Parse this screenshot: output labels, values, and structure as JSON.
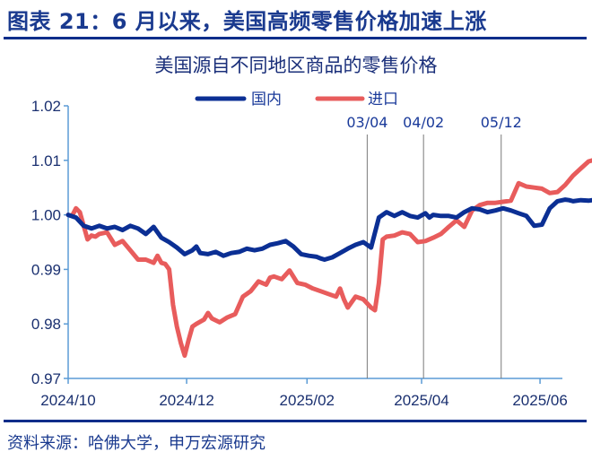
{
  "figure": {
    "title": "图表 21：6 月以来，美国高频零售价格加速上涨",
    "source": "资料来源：哈佛大学，申万宏源研究"
  },
  "colors": {
    "domestic": "#0b2f94",
    "import": "#e85c5c",
    "axis": "#5b9bd5",
    "rule": "#0b2d8a",
    "vline": "#7a7a7a"
  },
  "chart_data": {
    "type": "line",
    "title": "美国源自不同地区商品的零售价格",
    "xlabel": "",
    "ylabel": "",
    "ylim": [
      0.97,
      1.02
    ],
    "yticks": [
      "1.02",
      "1.01",
      "1.00",
      "0.99",
      "0.98",
      "0.97"
    ],
    "xticks": [
      "2024/10",
      "2024/12",
      "2025/02",
      "2025/04",
      "2025/06"
    ],
    "legend": [
      "国内",
      "进口"
    ],
    "legend_position": "top",
    "grid": false,
    "annotations": [
      {
        "label": "03/04",
        "date": "2025/03/04"
      },
      {
        "label": "04/02",
        "date": "2025/04/02"
      },
      {
        "label": "05/12",
        "date": "2025/05/12"
      }
    ],
    "x_days_note": "x = days since 2024/10/01",
    "series": [
      {
        "name": "国内",
        "x": [
          0,
          4,
          8,
          12,
          16,
          20,
          24,
          28,
          32,
          36,
          40,
          44,
          48,
          52,
          56,
          60,
          64,
          66,
          68,
          72,
          76,
          80,
          84,
          88,
          92,
          96,
          100,
          104,
          108,
          112,
          116,
          120,
          124,
          128,
          130,
          132,
          136,
          140,
          144,
          148,
          152,
          156,
          160,
          164,
          168,
          172,
          176,
          180,
          184,
          186,
          188,
          192,
          196,
          200,
          204,
          208,
          212,
          216,
          220,
          224,
          228,
          232,
          236,
          240,
          244,
          248,
          252,
          256,
          258,
          260,
          264,
          268,
          272,
          274
        ],
        "values": [
          1.0,
          0.9995,
          0.998,
          0.9975,
          0.998,
          0.9975,
          0.9978,
          0.9972,
          0.998,
          0.9975,
          0.9965,
          0.9978,
          0.9958,
          0.995,
          0.994,
          0.9928,
          0.9935,
          0.9942,
          0.993,
          0.9928,
          0.9932,
          0.9925,
          0.993,
          0.9932,
          0.9938,
          0.9935,
          0.9938,
          0.9945,
          0.9948,
          0.9952,
          0.9942,
          0.9928,
          0.9925,
          0.9923,
          0.992,
          0.9918,
          0.9922,
          0.993,
          0.9938,
          0.9945,
          0.995,
          0.994,
          0.9995,
          1.0005,
          0.9998,
          1.0005,
          0.9998,
          0.9995,
          1.0003,
          0.9995,
          1.0,
          0.9998,
          0.9998,
          0.9995,
          1.0005,
          1.0012,
          1.001,
          1.0005,
          1.0008,
          1.0012,
          1.0008,
          1.0003,
          0.9998,
          0.998,
          0.9982,
          1.0012,
          1.0025,
          1.0028,
          1.0027,
          1.0025,
          1.0027,
          1.0026,
          1.0028,
          1.0031
        ]
      },
      {
        "name": "进口",
        "x": [
          0,
          2,
          4,
          6,
          8,
          10,
          12,
          14,
          16,
          20,
          24,
          28,
          32,
          36,
          40,
          44,
          46,
          48,
          50,
          52,
          54,
          56,
          58,
          60,
          62,
          64,
          66,
          70,
          72,
          74,
          78,
          82,
          86,
          90,
          94,
          98,
          102,
          104,
          106,
          110,
          114,
          118,
          122,
          126,
          130,
          134,
          138,
          140,
          142,
          144,
          148,
          152,
          156,
          158,
          160,
          162,
          164,
          168,
          172,
          176,
          180,
          184,
          188,
          192,
          196,
          200,
          204,
          208,
          212,
          216,
          220,
          224,
          228,
          232,
          236,
          240,
          244,
          248,
          252,
          256,
          260,
          264,
          268,
          272,
          274
        ],
        "values": [
          1.0,
          0.9998,
          1.0012,
          1.0005,
          0.998,
          0.9955,
          0.9962,
          0.996,
          0.9965,
          0.9968,
          0.9945,
          0.9952,
          0.9935,
          0.9918,
          0.9918,
          0.9912,
          0.9925,
          0.9912,
          0.991,
          0.99,
          0.9835,
          0.9795,
          0.9765,
          0.9742,
          0.977,
          0.9795,
          0.98,
          0.9808,
          0.982,
          0.981,
          0.9803,
          0.9812,
          0.9818,
          0.985,
          0.986,
          0.9878,
          0.9872,
          0.9885,
          0.9887,
          0.9882,
          0.9898,
          0.9875,
          0.9872,
          0.9865,
          0.986,
          0.9855,
          0.985,
          0.9865,
          0.9845,
          0.983,
          0.985,
          0.9845,
          0.983,
          0.9825,
          0.9875,
          0.9955,
          0.996,
          0.9962,
          0.9968,
          0.9965,
          0.995,
          0.9952,
          0.9958,
          0.9965,
          0.9978,
          0.999,
          0.9978,
          1.0008,
          1.0018,
          1.0022,
          1.0022,
          1.0024,
          1.0026,
          1.0058,
          1.0052,
          1.005,
          1.0048,
          1.004,
          1.0042,
          1.0055,
          1.0072,
          1.0085,
          1.0098,
          1.0102,
          1.0108
        ]
      }
    ]
  }
}
